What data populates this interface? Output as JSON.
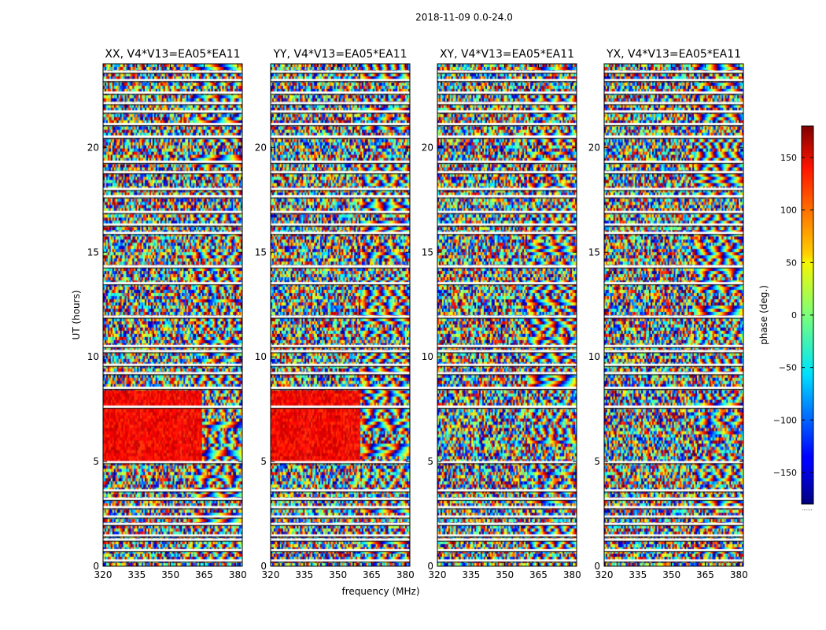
{
  "figure": {
    "title": "2018-11-09 0.0-24.0"
  },
  "chart_data": {
    "type": "heatmap",
    "title": "2018-11-09 0.0-24.0",
    "xlabel": "frequency (MHz)",
    "ylabel": "UT (hours)",
    "xlim": [
      320,
      382
    ],
    "ylim": [
      0,
      24
    ],
    "xticks": [
      320,
      335,
      350,
      365,
      380
    ],
    "yticks": [
      0,
      5,
      10,
      15,
      20
    ],
    "colormap": "jet",
    "colorbar": {
      "label": "phase (deg.)",
      "range": [
        -180,
        180
      ],
      "ticks": [
        150,
        100,
        50,
        0,
        -50,
        -100,
        -150
      ],
      "tick_labels": [
        "150",
        "100",
        "50",
        "0",
        "−50",
        "−100",
        "−150"
      ],
      "footer": "......"
    },
    "panels": [
      {
        "name": "XX",
        "title": "XX, V4*V13=EA05*EA11",
        "bright_band_hours": [
          5.0,
          8.4
        ],
        "bright_band_freq_end": 364
      },
      {
        "name": "YY",
        "title": "YY, V4*V13=EA05*EA11",
        "bright_band_hours": [
          5.0,
          8.4
        ],
        "bright_band_freq_end": 360
      },
      {
        "name": "XY",
        "title": "XY, V4*V13=EA05*EA11"
      },
      {
        "name": "YX",
        "title": "YX, V4*V13=EA05*EA11"
      }
    ],
    "gap_hours": [
      0.25,
      0.75,
      1.25,
      1.45,
      2.0,
      2.35,
      2.8,
      3.2,
      3.6,
      4.95,
      7.6,
      8.5,
      9.2,
      9.6,
      10.25,
      10.5,
      11.9,
      13.5,
      14.3,
      15.9,
      16.3,
      16.9,
      17.65,
      18.0,
      18.8,
      19.3,
      20.5,
      21.1,
      21.7,
      22.1,
      22.6,
      23.2,
      23.6
    ],
    "colors": {
      "axes_edge": "#000000",
      "gap": "#ffffff",
      "bright_band": "#d43c1c"
    }
  }
}
